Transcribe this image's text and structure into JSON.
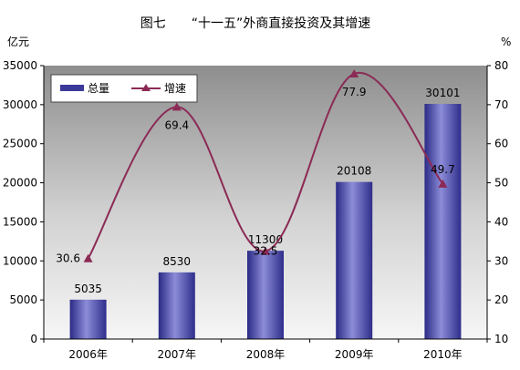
{
  "chart_data": {
    "type": "bar",
    "title": "图七　　“十一五”外商直接投资及其增速",
    "categories": [
      "2006年",
      "2007年",
      "2008年",
      "2009年",
      "2010年"
    ],
    "series": [
      {
        "name": "总量",
        "type": "bar",
        "axis": "left",
        "values": [
          5035,
          8530,
          11300,
          20108,
          30101
        ]
      },
      {
        "name": "增速",
        "type": "line",
        "axis": "right",
        "values": [
          30.6,
          69.4,
          32.5,
          77.9,
          49.7
        ]
      }
    ],
    "y_left": {
      "label": "亿元",
      "range": [
        0,
        35000
      ],
      "ticks": [
        0,
        5000,
        10000,
        15000,
        20000,
        25000,
        30000,
        35000
      ]
    },
    "y_right": {
      "label": "%",
      "range": [
        10,
        80
      ],
      "ticks": [
        10,
        20,
        30,
        40,
        50,
        60,
        70,
        80
      ]
    },
    "grid": false,
    "legend": "top-left",
    "colors": {
      "bar": "#3b3a9a",
      "bar_light": "#8c8cd8",
      "line": "#8b2a55",
      "plot_bg_dark": "#8e8e8e",
      "plot_bg_light": "#f4f4f4"
    }
  }
}
